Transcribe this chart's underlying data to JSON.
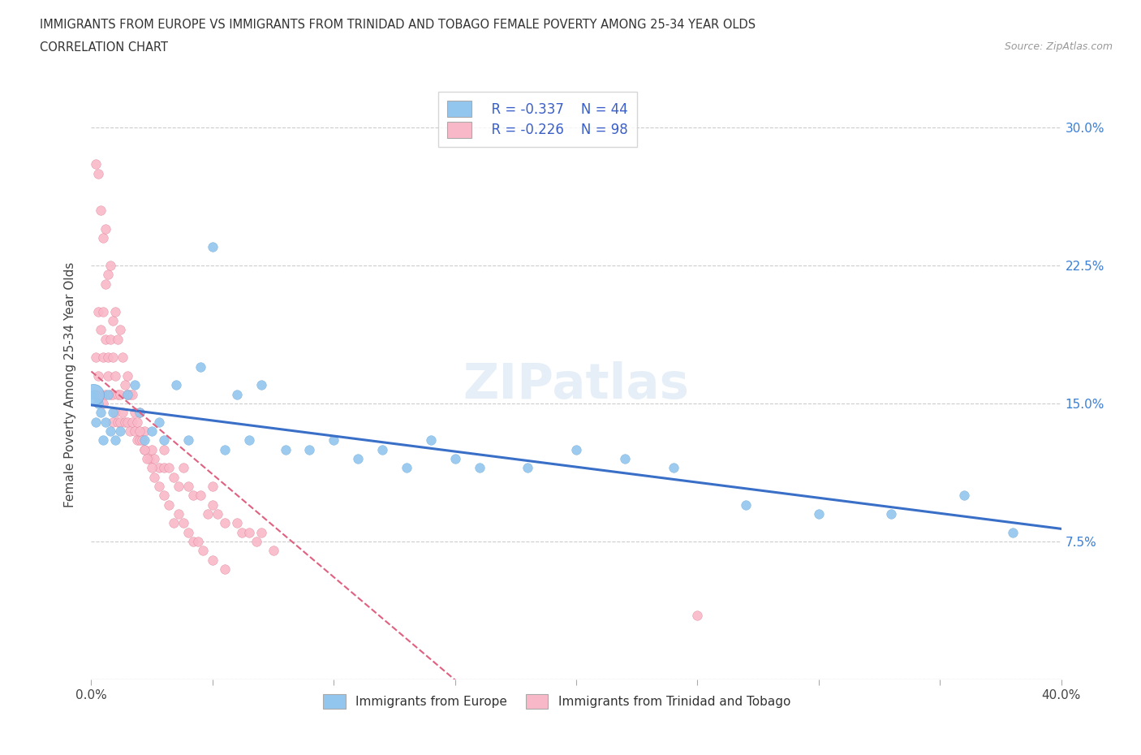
{
  "title_line1": "IMMIGRANTS FROM EUROPE VS IMMIGRANTS FROM TRINIDAD AND TOBAGO FEMALE POVERTY AMONG 25-34 YEAR OLDS",
  "title_line2": "CORRELATION CHART",
  "source_text": "Source: ZipAtlas.com",
  "ylabel": "Female Poverty Among 25-34 Year Olds",
  "xlim": [
    0.0,
    0.4
  ],
  "ylim": [
    0.0,
    0.32
  ],
  "xticks": [
    0.0,
    0.05,
    0.1,
    0.15,
    0.2,
    0.25,
    0.3,
    0.35,
    0.4
  ],
  "yticks": [
    0.0,
    0.075,
    0.15,
    0.225,
    0.3
  ],
  "ytick_labels_right": [
    "",
    "7.5%",
    "15.0%",
    "22.5%",
    "30.0%"
  ],
  "color_europe": "#93c6ee",
  "color_tt": "#f9b8c8",
  "line_color_europe": "#3a6fc8",
  "line_color_tt": "#e06080",
  "legend_text_color": "#3a5fc8",
  "watermark": "ZIPatlas",
  "legend_europe_label": "  R = -0.337    N = 44",
  "legend_tt_label": "  R = -0.226    N = 98",
  "bottom_legend_europe": "Immigrants from Europe",
  "bottom_legend_tt": "Immigrants from Trinidad and Tobago",
  "europe_x": [
    0.001,
    0.002,
    0.003,
    0.004,
    0.005,
    0.006,
    0.007,
    0.008,
    0.009,
    0.01,
    0.012,
    0.015,
    0.018,
    0.02,
    0.022,
    0.025,
    0.028,
    0.03,
    0.035,
    0.04,
    0.045,
    0.05,
    0.055,
    0.06,
    0.065,
    0.07,
    0.08,
    0.09,
    0.1,
    0.11,
    0.12,
    0.13,
    0.14,
    0.15,
    0.16,
    0.18,
    0.2,
    0.22,
    0.24,
    0.27,
    0.3,
    0.33,
    0.36,
    0.38
  ],
  "europe_y": [
    0.155,
    0.14,
    0.15,
    0.145,
    0.13,
    0.14,
    0.155,
    0.135,
    0.145,
    0.13,
    0.135,
    0.155,
    0.16,
    0.145,
    0.13,
    0.135,
    0.14,
    0.13,
    0.16,
    0.13,
    0.17,
    0.235,
    0.125,
    0.155,
    0.13,
    0.16,
    0.125,
    0.125,
    0.13,
    0.12,
    0.125,
    0.115,
    0.13,
    0.12,
    0.115,
    0.115,
    0.125,
    0.12,
    0.115,
    0.095,
    0.09,
    0.09,
    0.1,
    0.08
  ],
  "europe_large_x": [
    0.001
  ],
  "europe_large_y": [
    0.155
  ],
  "tt_x": [
    0.002,
    0.002,
    0.003,
    0.003,
    0.004,
    0.004,
    0.005,
    0.005,
    0.005,
    0.006,
    0.006,
    0.007,
    0.007,
    0.008,
    0.008,
    0.009,
    0.009,
    0.009,
    0.01,
    0.01,
    0.011,
    0.011,
    0.012,
    0.012,
    0.013,
    0.014,
    0.015,
    0.015,
    0.016,
    0.017,
    0.018,
    0.019,
    0.02,
    0.02,
    0.022,
    0.022,
    0.024,
    0.025,
    0.026,
    0.028,
    0.03,
    0.03,
    0.032,
    0.034,
    0.036,
    0.038,
    0.04,
    0.042,
    0.045,
    0.048,
    0.05,
    0.05,
    0.052,
    0.055,
    0.06,
    0.062,
    0.065,
    0.068,
    0.07,
    0.075,
    0.002,
    0.003,
    0.004,
    0.005,
    0.006,
    0.006,
    0.007,
    0.008,
    0.009,
    0.01,
    0.011,
    0.012,
    0.013,
    0.014,
    0.015,
    0.016,
    0.017,
    0.018,
    0.019,
    0.02,
    0.021,
    0.022,
    0.023,
    0.025,
    0.026,
    0.028,
    0.03,
    0.032,
    0.034,
    0.036,
    0.038,
    0.04,
    0.042,
    0.044,
    0.046,
    0.05,
    0.055,
    0.25
  ],
  "tt_y": [
    0.155,
    0.175,
    0.165,
    0.2,
    0.155,
    0.19,
    0.15,
    0.175,
    0.2,
    0.155,
    0.185,
    0.165,
    0.175,
    0.155,
    0.185,
    0.14,
    0.155,
    0.175,
    0.145,
    0.165,
    0.14,
    0.155,
    0.14,
    0.155,
    0.145,
    0.14,
    0.14,
    0.155,
    0.135,
    0.14,
    0.135,
    0.13,
    0.13,
    0.145,
    0.125,
    0.135,
    0.12,
    0.125,
    0.12,
    0.115,
    0.115,
    0.125,
    0.115,
    0.11,
    0.105,
    0.115,
    0.105,
    0.1,
    0.1,
    0.09,
    0.095,
    0.105,
    0.09,
    0.085,
    0.085,
    0.08,
    0.08,
    0.075,
    0.08,
    0.07,
    0.28,
    0.275,
    0.255,
    0.24,
    0.245,
    0.215,
    0.22,
    0.225,
    0.195,
    0.2,
    0.185,
    0.19,
    0.175,
    0.16,
    0.165,
    0.155,
    0.155,
    0.145,
    0.14,
    0.135,
    0.13,
    0.125,
    0.12,
    0.115,
    0.11,
    0.105,
    0.1,
    0.095,
    0.085,
    0.09,
    0.085,
    0.08,
    0.075,
    0.075,
    0.07,
    0.065,
    0.06,
    0.035
  ]
}
